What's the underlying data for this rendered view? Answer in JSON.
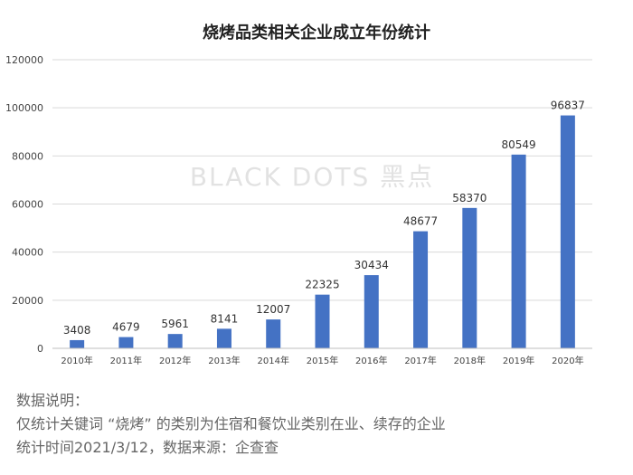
{
  "chart_data": {
    "type": "bar",
    "title": "烧烤品类相关企业成立年份统计",
    "categories": [
      "2010年",
      "2011年",
      "2012年",
      "2013年",
      "2014年",
      "2015年",
      "2016年",
      "2017年",
      "2018年",
      "2019年",
      "2020年"
    ],
    "values": [
      3408,
      4679,
      5961,
      8141,
      12007,
      22325,
      30434,
      48677,
      58370,
      80549,
      96837
    ],
    "ylim": [
      0,
      120000
    ],
    "yticks": [
      0,
      20000,
      40000,
      60000,
      80000,
      100000,
      120000
    ],
    "bar_color": "#4472c4",
    "grid": true,
    "watermark": "BLACK DOTS 黑点"
  },
  "notes": {
    "line1": "数据说明：",
    "line2": "仅统计关键词 “烧烤” 的类别为住宿和餐饮业类别在业、续存的企业",
    "line3": "统计时间2021/3/12，数据来源：企查查"
  }
}
